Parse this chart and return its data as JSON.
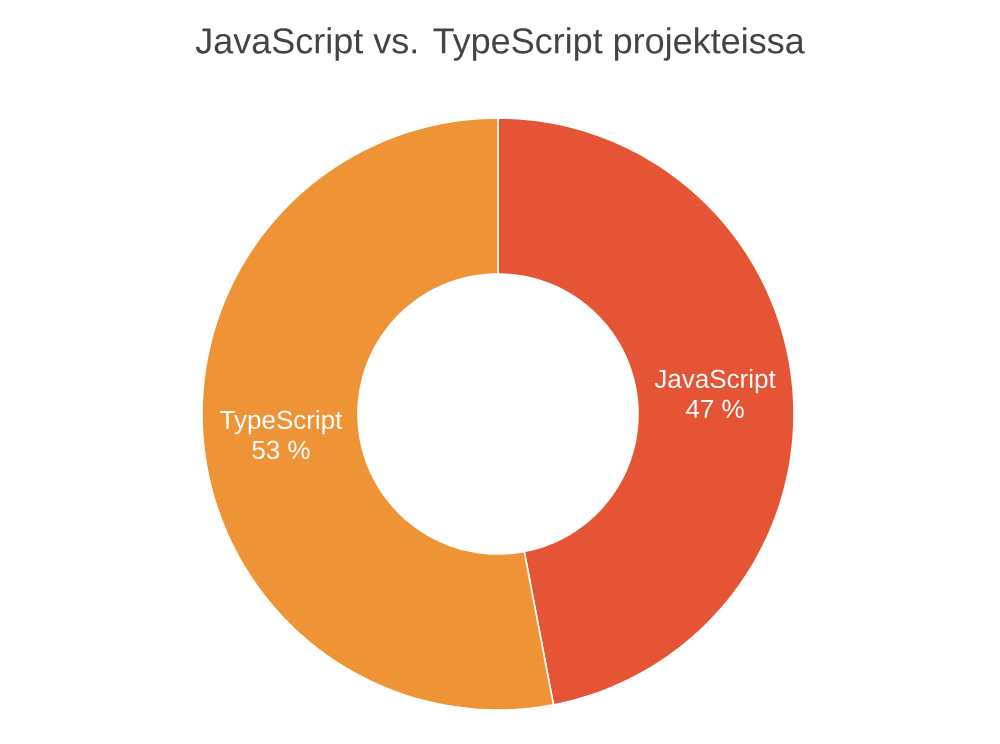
{
  "chart_data": {
    "type": "donut",
    "title": "JavaScript vs. TypeScript projekteissa",
    "categories": [
      "JavaScript",
      "TypeScript"
    ],
    "values": [
      47,
      53
    ],
    "colors": [
      "#e55434",
      "#ef9436"
    ],
    "value_labels": [
      "47 %",
      "53 %"
    ]
  }
}
